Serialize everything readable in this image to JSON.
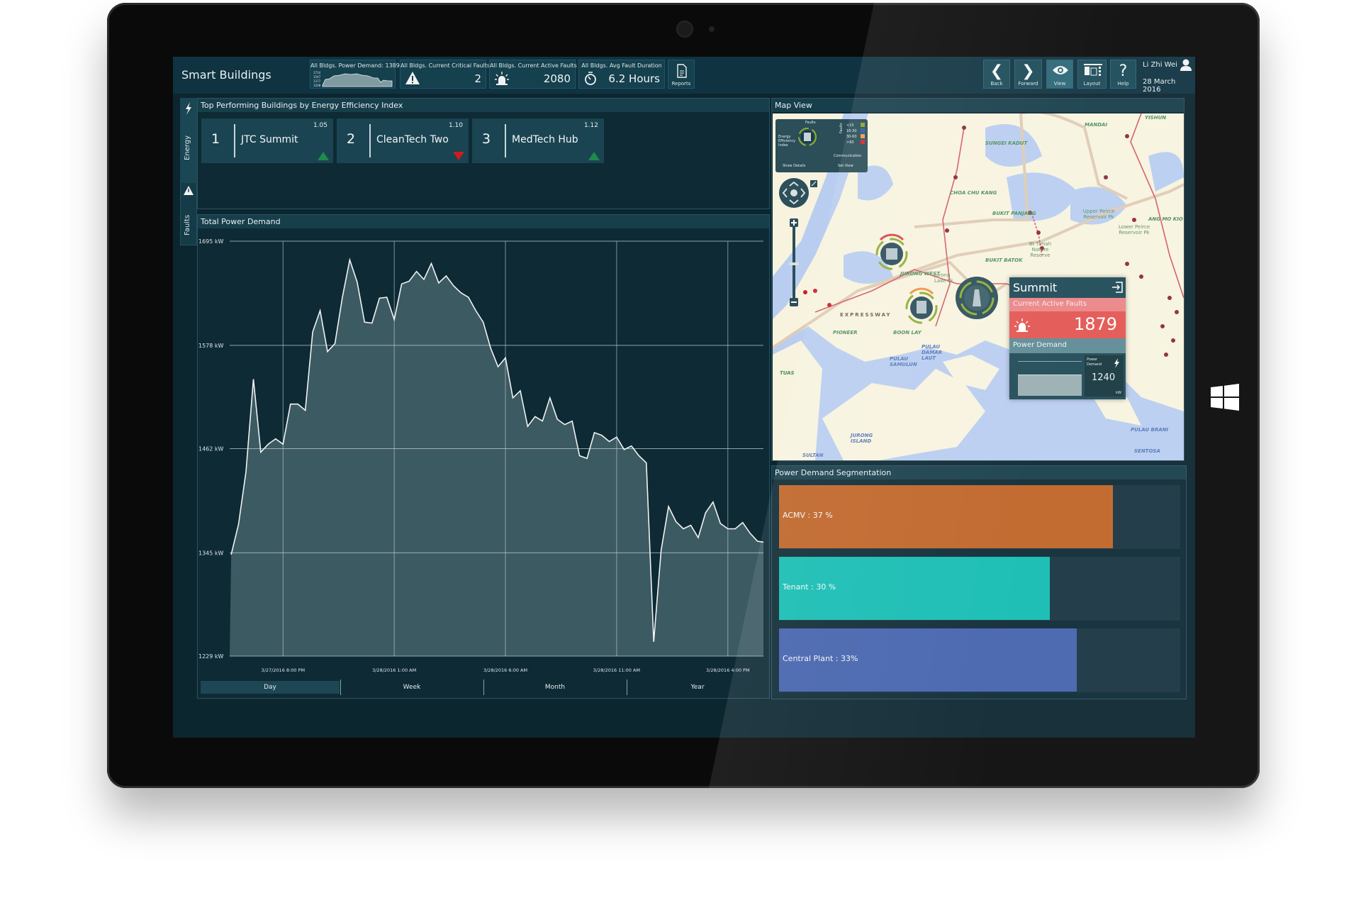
{
  "app": {
    "title": "Smart Buildings"
  },
  "kpis": [
    {
      "label": "All Bldgs. Power Demand: 1389 kW",
      "spark_ticks": [
        "1714",
        "1547",
        "1377",
        "1208"
      ]
    },
    {
      "label": "All Bldgs. Current Critical Faults",
      "value": "2",
      "icon": "warning-icon"
    },
    {
      "label": "All Bldgs. Current Active Faults",
      "value": "2080",
      "icon": "alarm-siren-icon"
    },
    {
      "label": "All Bldgs. Avg Fault Duration",
      "value": "6.2 Hours",
      "icon": "stopwatch-icon"
    }
  ],
  "reports": {
    "label": "Reports",
    "icon": "report-document-icon"
  },
  "nav": [
    {
      "label": "Back",
      "icon": "chevron-left-icon"
    },
    {
      "label": "Forward",
      "icon": "chevron-right-icon"
    },
    {
      "label": "View",
      "icon": "eye-icon"
    },
    {
      "label": "Layout",
      "icon": "layout-icon"
    },
    {
      "label": "Help",
      "icon": "help-icon"
    }
  ],
  "user": {
    "name": "Li Zhi Wei",
    "date": "28 March 2016"
  },
  "sidebar": {
    "energy": "Energy",
    "faults": "Faults"
  },
  "top_buildings": {
    "title": "Top Performing Buildings by Energy Efficiency Index",
    "items": [
      {
        "rank": "1",
        "name": "JTC Summit",
        "score": "1.05",
        "trend": "up"
      },
      {
        "rank": "2",
        "name": "CleanTech Two",
        "score": "1.10",
        "trend": "down"
      },
      {
        "rank": "3",
        "name": "MedTech Hub",
        "score": "1.12",
        "trend": "up"
      }
    ]
  },
  "power_chart": {
    "title": "Total Power Demand",
    "tabs": [
      {
        "label": "Day",
        "selected": true
      },
      {
        "label": "Week"
      },
      {
        "label": "Month"
      },
      {
        "label": "Year"
      }
    ]
  },
  "chart_data": [
    {
      "type": "area",
      "title": "Total Power Demand",
      "ylim": [
        1229,
        1695
      ],
      "y_ticks": [
        "1695 kW",
        "1578 kW",
        "1462 kW",
        "1345 kW",
        "1229 kW"
      ],
      "y_tick_values": [
        1695,
        1578,
        1462,
        1345,
        1229
      ],
      "xlim": [
        "2016-03-27 17:36",
        "2016-03-28 17:36"
      ],
      "x_ticks": [
        {
          "label": "3/27/2016 8:00 PM",
          "t": "2016-03-27 20:00"
        },
        {
          "label": "3/28/2016 1:00 AM",
          "t": "2016-03-28 01:00"
        },
        {
          "label": "3/28/2016 6:00 AM",
          "t": "2016-03-28 06:00"
        },
        {
          "label": "3/28/2016 11:00 AM",
          "t": "2016-03-28 11:00"
        },
        {
          "label": "3/28/2016 4:00 PM",
          "t": "2016-03-28 16:00"
        }
      ],
      "grid": true,
      "unit": "kW",
      "points": [
        [
          "2016-03-27 17:40",
          1343
        ],
        [
          "2016-03-27 18:00",
          1377
        ],
        [
          "2016-03-27 18:20",
          1436
        ],
        [
          "2016-03-27 18:40",
          1540
        ],
        [
          "2016-03-27 19:00",
          1458
        ],
        [
          "2016-03-27 19:20",
          1467
        ],
        [
          "2016-03-27 19:40",
          1473
        ],
        [
          "2016-03-27 20:00",
          1467
        ],
        [
          "2016-03-27 20:20",
          1512
        ],
        [
          "2016-03-27 20:40",
          1512
        ],
        [
          "2016-03-27 21:00",
          1505
        ],
        [
          "2016-03-27 21:20",
          1593
        ],
        [
          "2016-03-27 21:40",
          1617
        ],
        [
          "2016-03-27 22:00",
          1571
        ],
        [
          "2016-03-27 22:20",
          1580
        ],
        [
          "2016-03-27 22:40",
          1632
        ],
        [
          "2016-03-27 23:00",
          1674
        ],
        [
          "2016-03-27 23:20",
          1649
        ],
        [
          "2016-03-27 23:40",
          1604
        ],
        [
          "2016-03-28 00:00",
          1603
        ],
        [
          "2016-03-28 00:20",
          1631
        ],
        [
          "2016-03-28 00:40",
          1632
        ],
        [
          "2016-03-28 01:00",
          1607
        ],
        [
          "2016-03-28 01:20",
          1647
        ],
        [
          "2016-03-28 01:40",
          1650
        ],
        [
          "2016-03-28 02:00",
          1661
        ],
        [
          "2016-03-28 02:20",
          1652
        ],
        [
          "2016-03-28 02:40",
          1670
        ],
        [
          "2016-03-28 03:00",
          1648
        ],
        [
          "2016-03-28 03:20",
          1656
        ],
        [
          "2016-03-28 03:40",
          1645
        ],
        [
          "2016-03-28 04:00",
          1637
        ],
        [
          "2016-03-28 04:20",
          1632
        ],
        [
          "2016-03-28 04:40",
          1617
        ],
        [
          "2016-03-28 05:00",
          1604
        ],
        [
          "2016-03-28 05:20",
          1575
        ],
        [
          "2016-03-28 05:40",
          1554
        ],
        [
          "2016-03-28 06:00",
          1564
        ],
        [
          "2016-03-28 06:20",
          1519
        ],
        [
          "2016-03-28 06:40",
          1527
        ],
        [
          "2016-03-28 07:00",
          1487
        ],
        [
          "2016-03-28 07:20",
          1498
        ],
        [
          "2016-03-28 07:40",
          1493
        ],
        [
          "2016-03-28 08:00",
          1519
        ],
        [
          "2016-03-28 08:20",
          1495
        ],
        [
          "2016-03-28 08:40",
          1489
        ],
        [
          "2016-03-28 09:00",
          1493
        ],
        [
          "2016-03-28 09:20",
          1454
        ],
        [
          "2016-03-28 09:40",
          1451
        ],
        [
          "2016-03-28 10:00",
          1480
        ],
        [
          "2016-03-28 10:20",
          1477
        ],
        [
          "2016-03-28 10:40",
          1470
        ],
        [
          "2016-03-28 11:00",
          1475
        ],
        [
          "2016-03-28 11:20",
          1461
        ],
        [
          "2016-03-28 11:40",
          1465
        ],
        [
          "2016-03-28 12:00",
          1454
        ],
        [
          "2016-03-28 12:20",
          1446
        ],
        [
          "2016-03-28 12:40",
          1245
        ],
        [
          "2016-03-28 13:00",
          1348
        ],
        [
          "2016-03-28 13:20",
          1397
        ],
        [
          "2016-03-28 13:40",
          1380
        ],
        [
          "2016-03-28 14:00",
          1372
        ],
        [
          "2016-03-28 14:20",
          1376
        ],
        [
          "2016-03-28 14:40",
          1362
        ],
        [
          "2016-03-28 15:00",
          1390
        ],
        [
          "2016-03-28 15:20",
          1402
        ],
        [
          "2016-03-28 15:40",
          1378
        ],
        [
          "2016-03-28 16:00",
          1372
        ],
        [
          "2016-03-28 16:20",
          1372
        ],
        [
          "2016-03-28 16:40",
          1379
        ],
        [
          "2016-03-28 17:00",
          1367
        ],
        [
          "2016-03-28 17:20",
          1358
        ],
        [
          "2016-03-28 17:36",
          1357
        ]
      ],
      "colors": {
        "line": "#f2f2f2",
        "fill": "#3c5a62"
      }
    },
    {
      "type": "bar",
      "title": "Power Demand Segmentation",
      "orientation": "horizontal",
      "categories": [
        "ACMV",
        "Tenant",
        "Central Plant"
      ],
      "values": [
        37,
        30,
        33
      ],
      "labels": [
        "ACMV : 37 %",
        "Tenant : 30 %",
        "Central Plant : 33%"
      ],
      "colors": [
        "#bf6427",
        "#14bcb2",
        "#4462ad"
      ],
      "xlim": [
        0,
        44.5
      ]
    }
  ],
  "map": {
    "title": "Map View",
    "legend": {
      "faults": "Faults",
      "eei": "Energy Efficiency Index",
      "comm": "Communication",
      "faults_axis": "Faults",
      "ranges": [
        "<15",
        "16-30",
        "30-60",
        ">60"
      ],
      "range_colors": [
        "#8aa42a",
        "#2a5fa8",
        "#e89a50",
        "#d2262e"
      ],
      "show_details": "Show Details",
      "set_view": "Set View"
    },
    "labels": {
      "mandai": "MANDAI",
      "sungei": "SUNGEI KADUT",
      "choa": "CHOA CHU KANG",
      "panjang": "BUKIT PANJANG",
      "batok": "BUKIT BATOK",
      "upper": "Upper Peirce Reservoir Pk",
      "lower": "Lower Peirce Reservoir Pk",
      "amk": "ANG MO KIO",
      "timah": "Bt Timah Nature Reserve",
      "yishun": "YISHUN",
      "jwest": "JURONG WEST",
      "jlake": "Jurong Lake Pk",
      "pioneer": "PIONEER",
      "boonlay": "BOON LAY",
      "damar": "PULAU DAMAR LAUT",
      "samulun": "PULAU SAMULUN",
      "tuas": "TUAS",
      "jisland": "JURONG ISLAND",
      "sultan": "SULTAN",
      "brani": "PULAU BRANI",
      "sentosa": "SENTOSA",
      "expressway": "EXPRESSWAY"
    },
    "popup": {
      "building": "Summit",
      "faults_label": "Current Active Faults",
      "faults_value": "1879",
      "power_label": "Power Demand",
      "power_sub": "Power Demand",
      "power_value": "1240",
      "power_unit": "kW",
      "accent": "#e35652"
    }
  },
  "segmentation": {
    "title": "Power Demand Segmentation"
  }
}
